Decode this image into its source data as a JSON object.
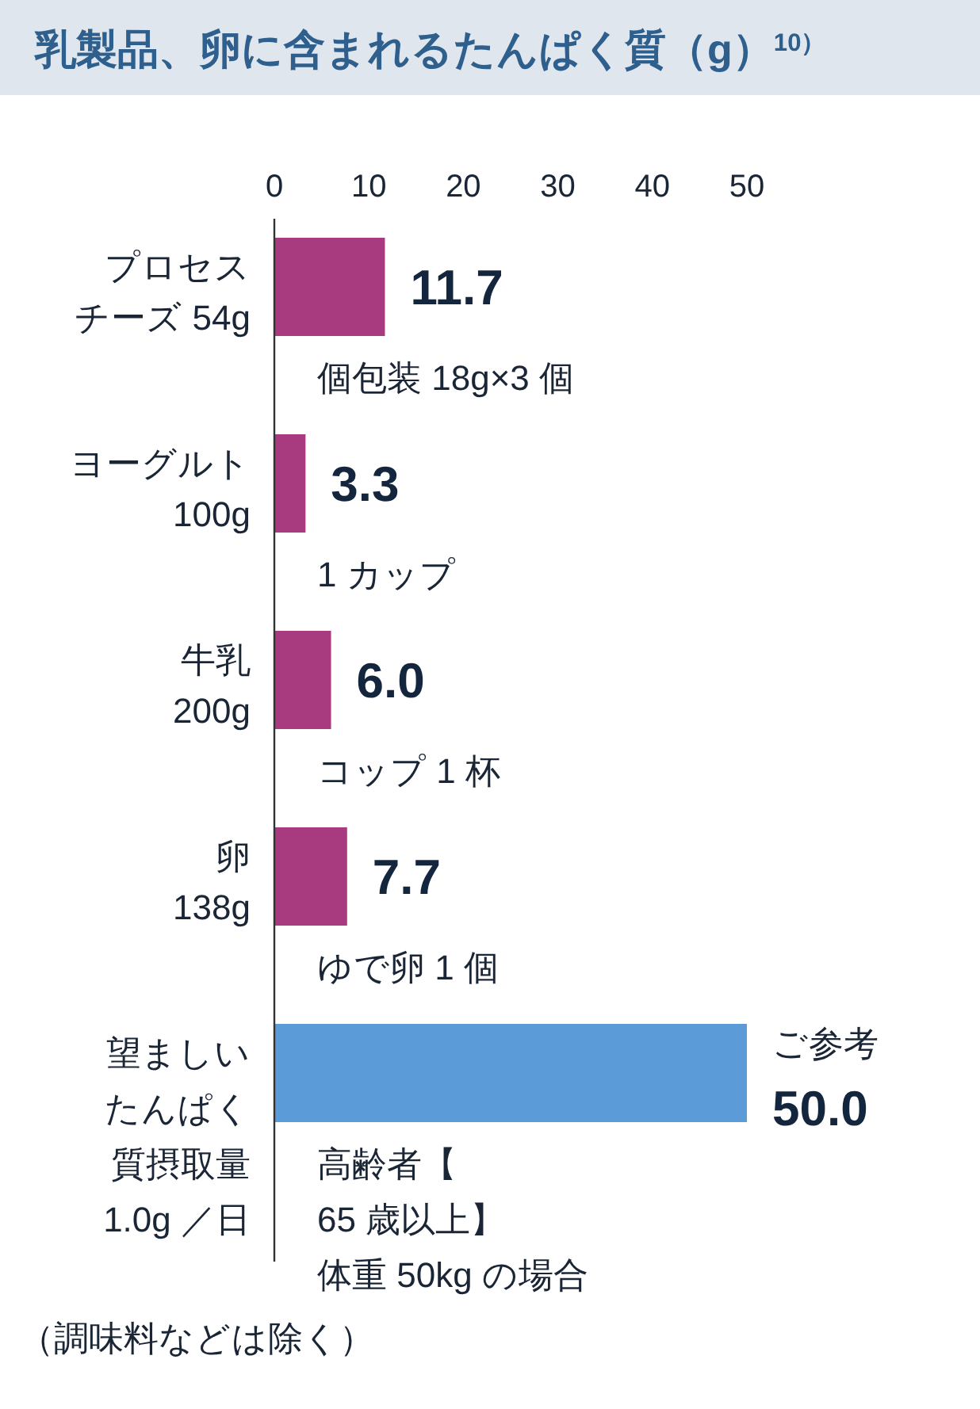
{
  "chart_data": {
    "type": "bar",
    "orientation": "horizontal",
    "title": "乳製品、卵に含まれるたんぱく質（g）$^{10）}$",
    "categories": [
      "プロセスチーズ 54g",
      "ヨーグルト100g",
      "牛乳200g",
      "卵138g",
      "望ましいたんぱく質摂取量1.0g ／日"
    ],
    "values": [
      11.7,
      3.3,
      6.0,
      7.7,
      50.0
    ],
    "colors": [
      "#a83b7f",
      "#a83b7f",
      "#a83b7f",
      "#a83b7f",
      "#5a9bd8"
    ],
    "value_labels": [
      "11.7",
      "3.3",
      "6.0",
      "7.7",
      "50.0"
    ],
    "xlim": [
      0,
      50
    ],
    "xticks": [
      0,
      10,
      20,
      30,
      40,
      50
    ],
    "grid": false,
    "annotations": [
      "個包装 18g×3 個",
      "1 カップ",
      "コップ 1 杯",
      "ゆで卵 1 個",
      "高齢者【65 歳以上】体重 50kg の場合",
      {
        "text": "ご参考",
        "x": 50,
        "y": "望ましいたんぱく質摂取量1.0g ／日"
      },
      "（調味料などは除く）"
    ]
  }
}
